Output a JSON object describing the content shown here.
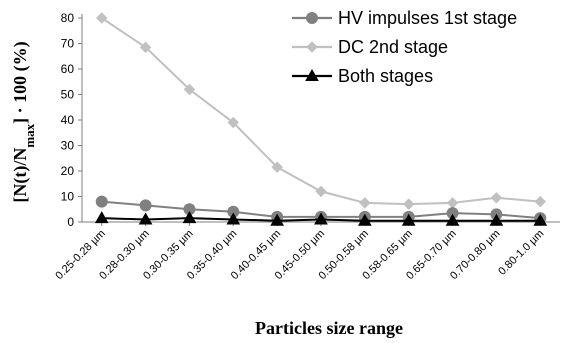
{
  "chart_data": {
    "type": "line",
    "title": "",
    "xlabel": "Particles size range",
    "ylabel": "[N(t)/Nmax] · 100 (%)",
    "ylabel_parts": {
      "pre": "[N(t)/N",
      "sub": "max",
      "post": "] · 100 (%)"
    },
    "ylim": [
      0,
      80
    ],
    "yticks": [
      0,
      10,
      20,
      30,
      40,
      50,
      60,
      70,
      80
    ],
    "grid": false,
    "legend_position": "top-right",
    "categories": [
      "0.25-0.28 µm",
      "0.28-0.30 µm",
      "0.30-0.35 µm",
      "0.35-0.40 µm",
      "0.40-0.45 µm",
      "0.45-0.50 µm",
      "0.50-0.58 µm",
      "0.58-0.65 µm",
      "0.65-0.70 µm",
      "0.70-0.80 µm",
      "0.80-1.0 µm"
    ],
    "series": [
      {
        "name": "HV impulses 1st stage",
        "marker": "circle",
        "color": "#808080",
        "values": [
          8,
          6.5,
          5,
          4,
          2,
          2,
          2,
          2,
          3.5,
          3,
          1.5
        ]
      },
      {
        "name": "DC 2nd stage",
        "marker": "diamond",
        "color": "#c0c0c0",
        "values": [
          80,
          68.5,
          52,
          39,
          21.5,
          12,
          7.5,
          7,
          7.5,
          9.5,
          8
        ]
      },
      {
        "name": "Both stages",
        "marker": "triangle",
        "color": "#000000",
        "values": [
          1.5,
          1,
          1.5,
          1,
          0.5,
          1,
          0.5,
          0.5,
          0.5,
          0.5,
          0.5
        ]
      }
    ]
  }
}
